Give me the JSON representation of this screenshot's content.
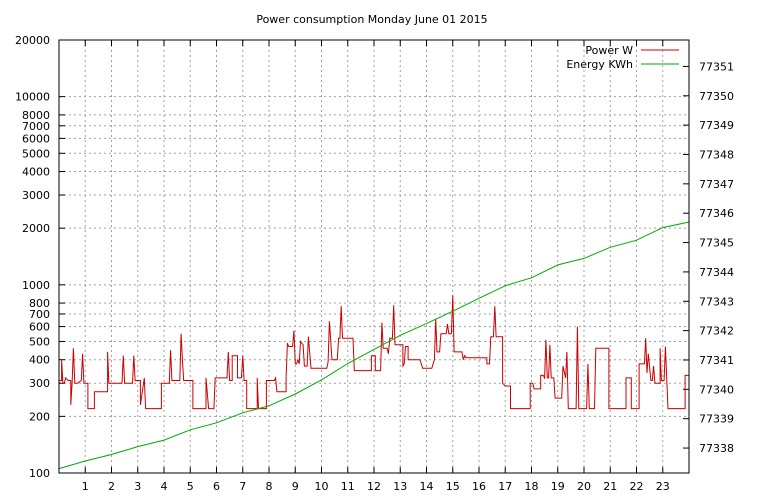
{
  "chart_data": {
    "type": "line",
    "title": "Power consumption Monday June 01 2015",
    "xlabel": "",
    "ylabel": "",
    "y2label": "",
    "xlim": [
      0,
      24
    ],
    "ylim": [
      100,
      20000
    ],
    "yscale": "log",
    "y2lim": [
      77337.15,
      77351.9
    ],
    "grid": true,
    "legend_position": "top-right",
    "x_ticks": [
      1,
      2,
      3,
      4,
      5,
      6,
      7,
      8,
      9,
      10,
      11,
      12,
      13,
      14,
      15,
      16,
      17,
      18,
      19,
      20,
      21,
      22,
      23
    ],
    "y_ticks": [
      100,
      200,
      300,
      400,
      500,
      600,
      700,
      800,
      1000,
      2000,
      3000,
      4000,
      5000,
      6000,
      7000,
      8000,
      10000,
      20000
    ],
    "y2_ticks": [
      77338,
      77339,
      77340,
      77341,
      77342,
      77343,
      77344,
      77345,
      77346,
      77347,
      77348,
      77349,
      77350,
      77351
    ],
    "series": [
      {
        "name": "Power W",
        "axis": "left",
        "color": "#cc0000",
        "points": [
          [
            0,
            310
          ],
          [
            0.1,
            310
          ],
          [
            0.1,
            400
          ],
          [
            0.15,
            300
          ],
          [
            0.2,
            300
          ],
          [
            0.25,
            320
          ],
          [
            0.35,
            310
          ],
          [
            0.45,
            310
          ],
          [
            0.45,
            230
          ],
          [
            0.5,
            300
          ],
          [
            0.55,
            460
          ],
          [
            0.6,
            300
          ],
          [
            0.7,
            300
          ],
          [
            0.85,
            310
          ],
          [
            0.9,
            430
          ],
          [
            0.95,
            300
          ],
          [
            1.1,
            300
          ],
          [
            1.1,
            220
          ],
          [
            1.35,
            220
          ],
          [
            1.35,
            270
          ],
          [
            1.7,
            270
          ],
          [
            1.85,
            270
          ],
          [
            1.85,
            440
          ],
          [
            1.9,
            300
          ],
          [
            2.4,
            300
          ],
          [
            2.45,
            420
          ],
          [
            2.5,
            300
          ],
          [
            2.8,
            300
          ],
          [
            2.85,
            420
          ],
          [
            2.9,
            310
          ],
          [
            3.1,
            310
          ],
          [
            3.1,
            230
          ],
          [
            3.25,
            320
          ],
          [
            3.3,
            220
          ],
          [
            3.9,
            220
          ],
          [
            3.9,
            300
          ],
          [
            4.2,
            300
          ],
          [
            4.25,
            450
          ],
          [
            4.3,
            310
          ],
          [
            4.6,
            310
          ],
          [
            4.65,
            550
          ],
          [
            4.7,
            400
          ],
          [
            4.75,
            310
          ],
          [
            5.1,
            310
          ],
          [
            5.1,
            220
          ],
          [
            5.6,
            220
          ],
          [
            5.6,
            320
          ],
          [
            5.7,
            220
          ],
          [
            5.9,
            220
          ],
          [
            5.95,
            320
          ],
          [
            6.4,
            320
          ],
          [
            6.45,
            440
          ],
          [
            6.5,
            310
          ],
          [
            6.6,
            310
          ],
          [
            6.6,
            420
          ],
          [
            6.8,
            420
          ],
          [
            6.8,
            320
          ],
          [
            6.95,
            320
          ],
          [
            7.0,
            420
          ],
          [
            7.05,
            310
          ],
          [
            7.15,
            310
          ],
          [
            7.15,
            220
          ],
          [
            7.55,
            220
          ],
          [
            7.55,
            320
          ],
          [
            7.6,
            220
          ],
          [
            7.9,
            220
          ],
          [
            7.9,
            310
          ],
          [
            8.2,
            310
          ],
          [
            8.25,
            320
          ],
          [
            8.3,
            270
          ],
          [
            8.65,
            270
          ],
          [
            8.65,
            320
          ],
          [
            8.7,
            490
          ],
          [
            8.75,
            470
          ],
          [
            8.9,
            470
          ],
          [
            8.95,
            570
          ],
          [
            9.0,
            380
          ],
          [
            9.05,
            380
          ],
          [
            9.1,
            400
          ],
          [
            9.15,
            380
          ],
          [
            9.2,
            500
          ],
          [
            9.3,
            480
          ],
          [
            9.35,
            370
          ],
          [
            9.45,
            370
          ],
          [
            9.5,
            530
          ],
          [
            9.6,
            360
          ],
          [
            10.2,
            360
          ],
          [
            10.25,
            390
          ],
          [
            10.3,
            640
          ],
          [
            10.4,
            400
          ],
          [
            10.6,
            400
          ],
          [
            10.65,
            520
          ],
          [
            10.7,
            520
          ],
          [
            10.75,
            770
          ],
          [
            10.8,
            520
          ],
          [
            11.2,
            520
          ],
          [
            11.25,
            350
          ],
          [
            11.9,
            350
          ],
          [
            11.9,
            420
          ],
          [
            12.05,
            420
          ],
          [
            12.05,
            350
          ],
          [
            12.25,
            350
          ],
          [
            12.3,
            630
          ],
          [
            12.35,
            460
          ],
          [
            12.5,
            460
          ],
          [
            12.55,
            430
          ],
          [
            12.6,
            520
          ],
          [
            12.7,
            520
          ],
          [
            12.75,
            780
          ],
          [
            12.8,
            480
          ],
          [
            13.1,
            480
          ],
          [
            13.1,
            370
          ],
          [
            13.15,
            380
          ],
          [
            13.2,
            470
          ],
          [
            13.3,
            470
          ],
          [
            13.3,
            400
          ],
          [
            13.75,
            400
          ],
          [
            13.8,
            380
          ],
          [
            13.85,
            360
          ],
          [
            14.2,
            360
          ],
          [
            14.3,
            400
          ],
          [
            14.35,
            660
          ],
          [
            14.4,
            440
          ],
          [
            14.5,
            440
          ],
          [
            14.55,
            550
          ],
          [
            14.75,
            550
          ],
          [
            14.8,
            620
          ],
          [
            14.85,
            550
          ],
          [
            14.95,
            550
          ],
          [
            15.0,
            880
          ],
          [
            15.05,
            440
          ],
          [
            15.35,
            440
          ],
          [
            15.4,
            400
          ],
          [
            15.45,
            420
          ],
          [
            15.5,
            410
          ],
          [
            16.3,
            410
          ],
          [
            16.3,
            380
          ],
          [
            16.4,
            380
          ],
          [
            16.45,
            530
          ],
          [
            16.55,
            530
          ],
          [
            16.6,
            770
          ],
          [
            16.65,
            530
          ],
          [
            16.9,
            530
          ],
          [
            16.9,
            300
          ],
          [
            17.0,
            290
          ],
          [
            17.2,
            290
          ],
          [
            17.2,
            220
          ],
          [
            17.95,
            220
          ],
          [
            17.95,
            300
          ],
          [
            18.05,
            300
          ],
          [
            18.1,
            280
          ],
          [
            18.35,
            280
          ],
          [
            18.35,
            330
          ],
          [
            18.45,
            330
          ],
          [
            18.5,
            320
          ],
          [
            18.55,
            510
          ],
          [
            18.6,
            320
          ],
          [
            18.65,
            320
          ],
          [
            18.7,
            480
          ],
          [
            18.75,
            320
          ],
          [
            18.85,
            320
          ],
          [
            18.9,
            250
          ],
          [
            19.15,
            250
          ],
          [
            19.2,
            370
          ],
          [
            19.3,
            320
          ],
          [
            19.35,
            440
          ],
          [
            19.4,
            220
          ],
          [
            19.7,
            220
          ],
          [
            19.75,
            600
          ],
          [
            19.8,
            220
          ],
          [
            20.1,
            220
          ],
          [
            20.15,
            380
          ],
          [
            20.2,
            220
          ],
          [
            20.4,
            220
          ],
          [
            20.45,
            460
          ],
          [
            20.95,
            460
          ],
          [
            20.95,
            220
          ],
          [
            21.6,
            220
          ],
          [
            21.6,
            320
          ],
          [
            21.8,
            320
          ],
          [
            21.8,
            220
          ],
          [
            22.1,
            220
          ],
          [
            22.1,
            380
          ],
          [
            22.3,
            380
          ],
          [
            22.35,
            520
          ],
          [
            22.4,
            340
          ],
          [
            22.45,
            430
          ],
          [
            22.55,
            310
          ],
          [
            22.6,
            310
          ],
          [
            22.65,
            370
          ],
          [
            22.7,
            300
          ],
          [
            22.9,
            300
          ],
          [
            22.9,
            460
          ],
          [
            22.95,
            310
          ],
          [
            23.05,
            310
          ],
          [
            23.1,
            470
          ],
          [
            23.15,
            320
          ],
          [
            23.2,
            220
          ],
          [
            23.85,
            220
          ],
          [
            23.85,
            330
          ],
          [
            24,
            330
          ]
        ]
      },
      {
        "name": "Energy KWh",
        "axis": "right",
        "color": "#00aa00",
        "points": [
          [
            0,
            77337.3
          ],
          [
            1,
            77337.56
          ],
          [
            2,
            77337.78
          ],
          [
            3,
            77338.05
          ],
          [
            4,
            77338.27
          ],
          [
            5,
            77338.62
          ],
          [
            6,
            77338.86
          ],
          [
            7,
            77339.2
          ],
          [
            8,
            77339.44
          ],
          [
            9,
            77339.84
          ],
          [
            10,
            77340.32
          ],
          [
            11,
            77340.88
          ],
          [
            12,
            77341.36
          ],
          [
            13,
            77341.84
          ],
          [
            14,
            77342.24
          ],
          [
            15,
            77342.66
          ],
          [
            16,
            77343.1
          ],
          [
            17,
            77343.53
          ],
          [
            18,
            77343.8
          ],
          [
            19,
            77344.24
          ],
          [
            20,
            77344.46
          ],
          [
            21,
            77344.84
          ],
          [
            22,
            77345.08
          ],
          [
            23,
            77345.51
          ],
          [
            24,
            77345.7
          ]
        ]
      }
    ]
  }
}
